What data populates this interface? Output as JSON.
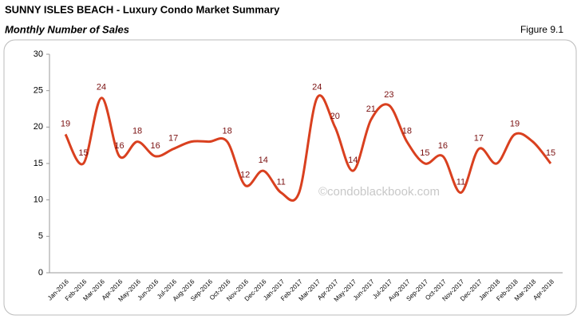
{
  "chart_data": {
    "type": "line",
    "title": "SUNNY ISLES BEACH - Luxury Condo Market Summary",
    "subtitle": "Monthly Number of Sales",
    "figure_label": "Figure 9.1",
    "watermark": "©condoblackbook.com",
    "categories": [
      "Jan-2016",
      "Feb-2016",
      "Mar-2016",
      "Apr-2016",
      "May-2016",
      "Jun-2016",
      "Jul-2016",
      "Aug-2016",
      "Sep-2016",
      "Oct-2016",
      "Nov-2016",
      "Dec-2016",
      "Jan-2017",
      "Feb-2017",
      "Mar-2017",
      "Apr-2017",
      "May-2017",
      "Jun-2017",
      "Jul-2017",
      "Aug-2017",
      "Sep-2017",
      "Oct-2017",
      "Nov-2017",
      "Dec-2017",
      "Jan-2018",
      "Feb-2018",
      "Mar-2018",
      "Apr-2018"
    ],
    "series": [
      {
        "name": "Monthly Number of Sales",
        "color": "#d9401f",
        "values": [
          19,
          15,
          24,
          16,
          18,
          16,
          17,
          18,
          18,
          18,
          12,
          14,
          11,
          11,
          24,
          20,
          14,
          21,
          23,
          18,
          15,
          16,
          11,
          17,
          15,
          19,
          18,
          15
        ],
        "value_labels": [
          "19",
          "15",
          "24",
          "16",
          "18",
          "16",
          "17",
          null,
          null,
          "18",
          "12",
          "14",
          "11",
          null,
          "24",
          "20",
          "14",
          "21",
          "23",
          "18",
          "15",
          "16",
          "11",
          "17",
          null,
          "19",
          null,
          "15"
        ]
      }
    ],
    "ylim": [
      0,
      30
    ],
    "yticks": [
      0,
      5,
      10,
      15,
      20,
      25,
      30
    ],
    "grid": false
  }
}
